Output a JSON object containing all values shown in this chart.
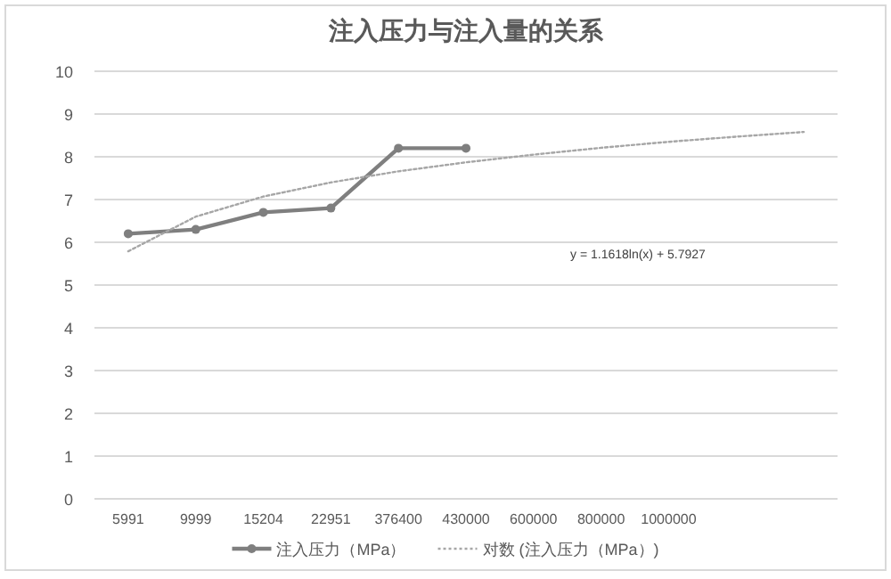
{
  "chart_data": {
    "type": "line",
    "title": "注入压力与注入量的关系",
    "categories": [
      "5991",
      "9999",
      "15204",
      "22951",
      "376400",
      "430000",
      "600000",
      "800000",
      "1000000",
      null,
      null
    ],
    "series": [
      {
        "name": "注入压力（MPa）",
        "color": "#7f7f7f",
        "marker": "circle",
        "line_style": "solid",
        "values": [
          6.2,
          6.3,
          6.7,
          6.8,
          8.2,
          8.2,
          null,
          null,
          null,
          null,
          null
        ]
      },
      {
        "name": "对数 (注入压力（MPa）)",
        "color": "#a6a6a6",
        "marker": "none",
        "line_style": "dotted",
        "values": [
          5.79,
          6.6,
          7.07,
          7.4,
          7.66,
          7.87,
          8.05,
          8.21,
          8.35,
          8.47,
          8.58
        ]
      }
    ],
    "ylim": [
      0,
      10
    ],
    "yticks": [
      0,
      1,
      2,
      3,
      4,
      5,
      6,
      7,
      8,
      9,
      10
    ],
    "grid": "y",
    "legend": "bottom",
    "annotations": [
      "y = 1.1618ln(x) + 5.7927"
    ]
  }
}
